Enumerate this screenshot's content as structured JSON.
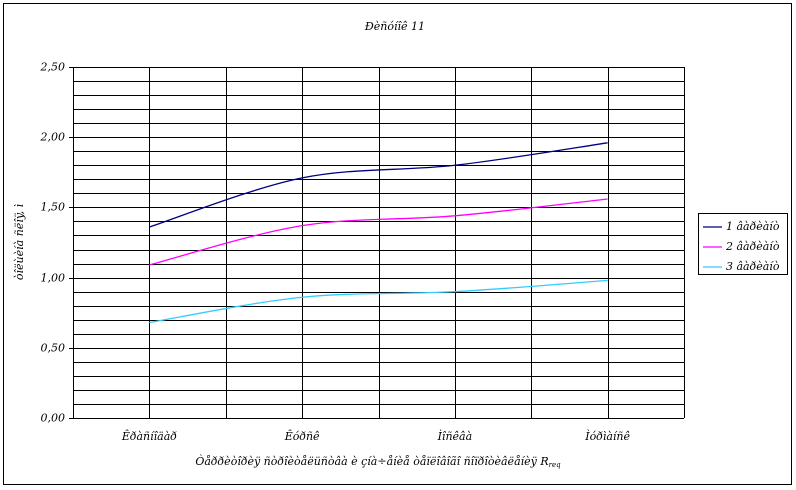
{
  "chart_data": {
    "type": "line",
    "title": "Ðèñóíîê 11",
    "y_label": "òîëùèíà ñëîÿ, ì",
    "x_label": "Òåððèòîðèÿ ñòðîèòåëüñòâà è çíà÷åíèå òåïëîâîãî ñîïðîòèâëåíèÿ R",
    "x_label_subscript": "req",
    "categories": [
      "Êðàñíîäàð",
      "Êóðñê",
      "Ìîñêâà",
      "Ìóðìàíñê"
    ],
    "series": [
      {
        "name": "1 âàðèàíò",
        "color": "#000080",
        "values": [
          1.36,
          1.71,
          1.8,
          1.96
        ]
      },
      {
        "name": "2 âàðèàíò",
        "color": "#ff00ff",
        "values": [
          1.09,
          1.37,
          1.44,
          1.56
        ]
      },
      {
        "name": "3 âàðèàíò",
        "color": "#33ccff",
        "values": [
          0.68,
          0.86,
          0.9,
          0.98
        ]
      }
    ],
    "ylim": [
      0,
      2.5
    ],
    "yticks": [
      {
        "value": 0,
        "label": "0,00"
      },
      {
        "value": 0.5,
        "label": "0,50"
      },
      {
        "value": 1,
        "label": "1,00"
      },
      {
        "value": 1.5,
        "label": "1,50"
      },
      {
        "value": 2,
        "label": "2,00"
      },
      {
        "value": 2.5,
        "label": "2,50"
      }
    ],
    "minor_grid_step": 0.1,
    "grid": true,
    "smooth": true,
    "legend": "right"
  }
}
